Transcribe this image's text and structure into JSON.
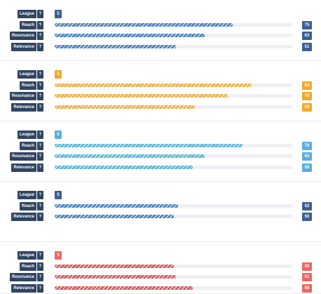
{
  "labels": {
    "league": "League",
    "reach": "Reach",
    "resonance": "Resonance",
    "relevance": "Relevance",
    "help": "?"
  },
  "panels": [
    {
      "color": "#3b5f92",
      "bar_color": "#4a86c0",
      "value_color": "#3b5f92",
      "league": "5",
      "metrics": [
        {
          "key": "reach",
          "value": 75
        },
        {
          "key": "resonance",
          "value": 63
        },
        {
          "key": "relevance",
          "value": 51
        }
      ]
    },
    {
      "color": "#f0a928",
      "bar_color": "#f0b144",
      "value_color": "#f0a928",
      "league": "5",
      "metrics": [
        {
          "key": "reach",
          "value": 83
        },
        {
          "key": "resonance",
          "value": 73
        },
        {
          "key": "relevance",
          "value": 59
        }
      ]
    },
    {
      "color": "#5aaedf",
      "bar_color": "#5ab8dc",
      "value_color": "#5aaedf",
      "league": "5",
      "metrics": [
        {
          "key": "reach",
          "value": 79
        },
        {
          "key": "resonance",
          "value": 63
        },
        {
          "key": "relevance",
          "value": 58
        }
      ]
    },
    {
      "color": "#3b5f92",
      "bar_color": "#4a86c0",
      "value_color": "#3b5f92",
      "league": "5",
      "metrics": [
        {
          "key": "reach",
          "value": 52
        },
        {
          "key": "relevance",
          "value": 50
        }
      ]
    },
    {
      "color": "#ea6863",
      "bar_color": "#d75a5a",
      "value_color": "#ea6863",
      "league": "5",
      "metrics": [
        {
          "key": "reach",
          "value": 50
        },
        {
          "key": "resonance",
          "value": 51
        },
        {
          "key": "relevance",
          "value": 58
        }
      ]
    }
  ]
}
